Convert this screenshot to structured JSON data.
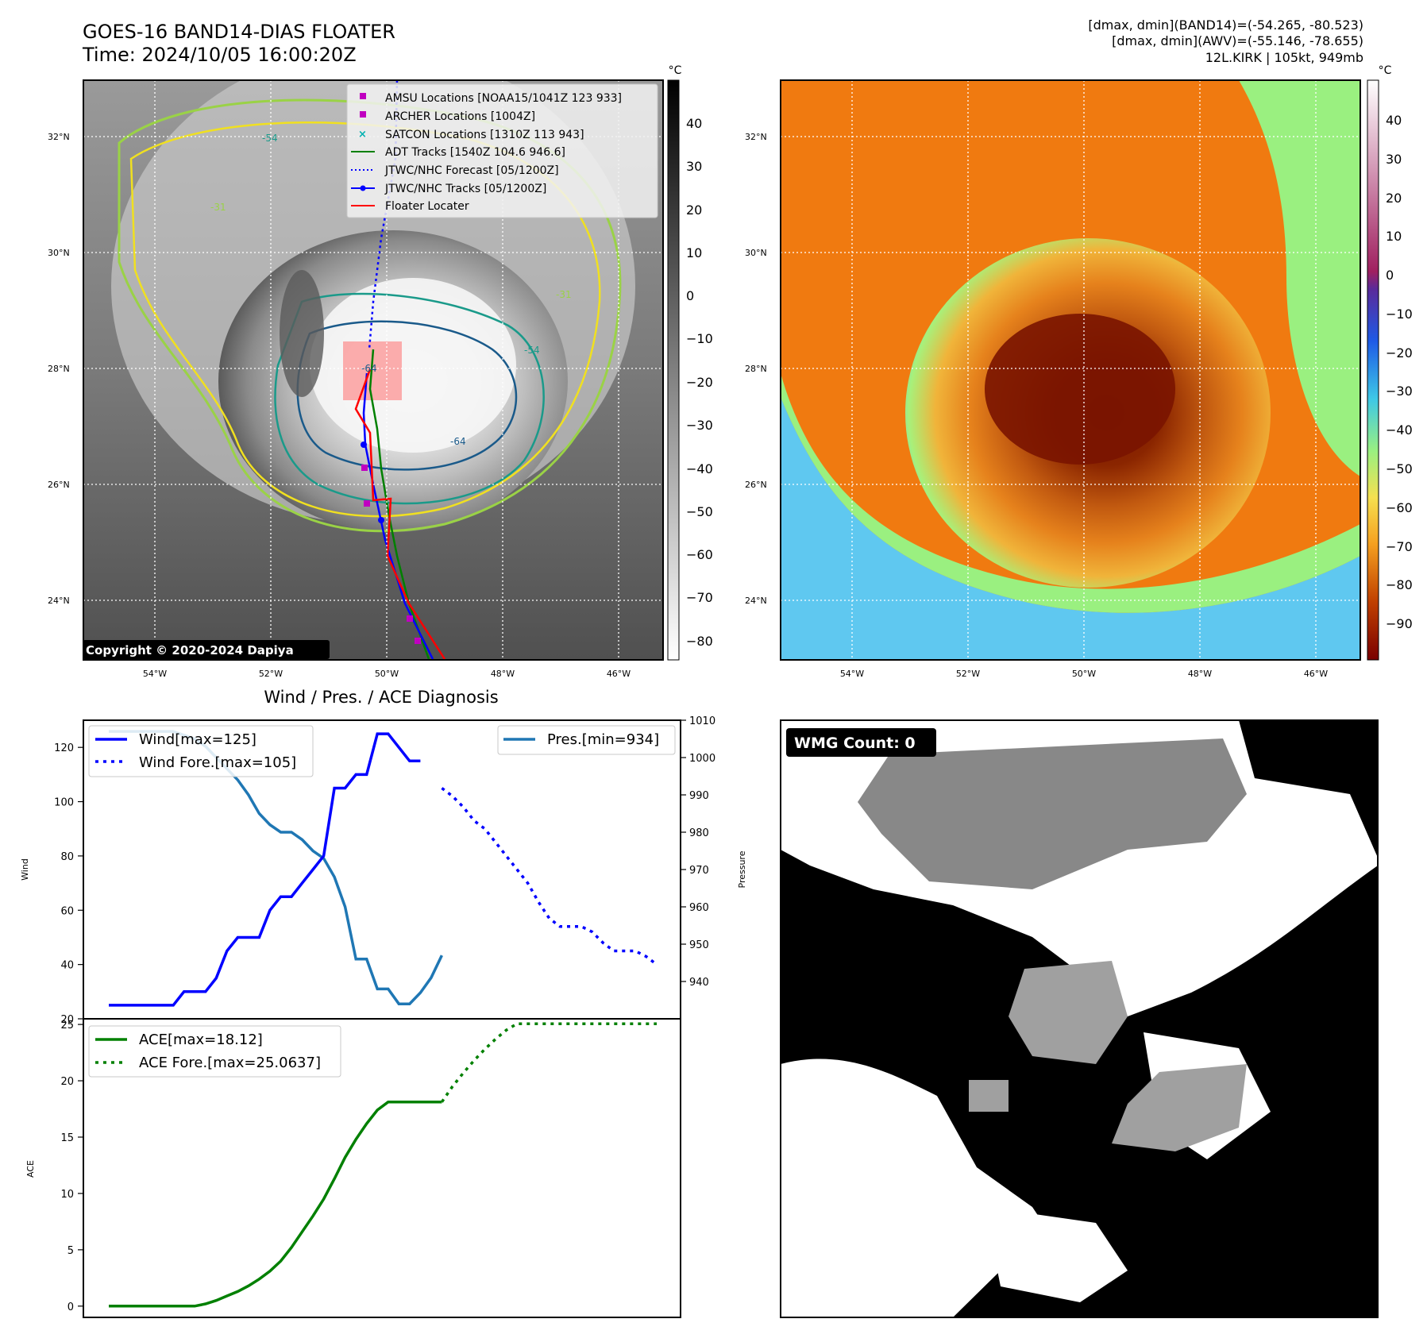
{
  "header": {
    "title": "GOES-16 BAND14-DIAS FLOATER",
    "time": "Time: 2024/10/05 16:00:20Z",
    "dmax_band14": "[dmax, dmin](BAND14)=(-54.265, -80.523)",
    "dmax_awv": "[dmax, dmin](AWV)=(-55.146, -78.655)",
    "storm": "12L.KIRK | 105kt, 949mb"
  },
  "map_axes": {
    "lat_labels": [
      "32°N",
      "30°N",
      "28°N",
      "26°N",
      "24°N"
    ],
    "lon_labels": [
      "54°W",
      "52°W",
      "50°W",
      "48°W",
      "46°W"
    ]
  },
  "ir_panel": {
    "legend": [
      {
        "label": "AMSU Locations [NOAA15/1041Z 123 933]",
        "color": "#c000c0",
        "marker": "square"
      },
      {
        "label": "ARCHER Locations [1004Z]",
        "color": "#c000c0",
        "marker": "square"
      },
      {
        "label": "SATCON Locations [1310Z 113 943]",
        "color": "#00b0b0",
        "marker": "x"
      },
      {
        "label": "ADT Tracks [1540Z 104.6 946.6]",
        "color": "#008000",
        "marker": "line"
      },
      {
        "label": "JTWC/NHC Forecast [05/1200Z]",
        "color": "#0000ff",
        "marker": "dotted"
      },
      {
        "label": "JTWC/NHC Tracks [05/1200Z]",
        "color": "#0000ff",
        "marker": "line-dot"
      },
      {
        "label": "Floater Locater",
        "color": "#ff0000",
        "marker": "line"
      }
    ],
    "colorbar_unit": "°C",
    "colorbar_ticks": [
      "40",
      "30",
      "20",
      "10",
      "0",
      "−10",
      "−20",
      "−30",
      "−40",
      "−50",
      "−60",
      "−70",
      "−80"
    ],
    "copyright": "Copyright © 2020-2024 Dapiya",
    "contour_labels": [
      "-54",
      "-31",
      "-31",
      "-54",
      "-64",
      "-64"
    ]
  },
  "awv_panel": {
    "colorbar_unit": "°C",
    "colorbar_ticks": [
      "40",
      "30",
      "20",
      "10",
      "0",
      "−10",
      "−20",
      "−30",
      "−40",
      "−50",
      "−60",
      "−70",
      "−80",
      "−90"
    ]
  },
  "wmg_panel": {
    "count_label": "WMG Count: 0"
  },
  "chart_data": [
    {
      "type": "line",
      "title": "Wind / Pres. / ACE Diagnosis",
      "ylabel": "Wind",
      "ylim": [
        20,
        130
      ],
      "yticks": [
        "120",
        "100",
        "80",
        "60",
        "40",
        "20"
      ],
      "series": [
        {
          "name": "Wind[max=125]",
          "color": "#0000ff",
          "style": "solid",
          "x": [
            0,
            1,
            2,
            3,
            4,
            5,
            6,
            7,
            8,
            9,
            10,
            11,
            12,
            13,
            14,
            15,
            16,
            17,
            18,
            19,
            20,
            21,
            22,
            23,
            24,
            25,
            26,
            27,
            28,
            29
          ],
          "values": [
            25,
            25,
            25,
            25,
            25,
            25,
            25,
            30,
            30,
            30,
            35,
            45,
            50,
            50,
            50,
            60,
            65,
            65,
            70,
            75,
            80,
            105,
            105,
            110,
            110,
            125,
            125,
            120,
            115,
            115
          ]
        },
        {
          "name": "Wind Fore.[max=105]",
          "color": "#0000ff",
          "style": "dotted",
          "x": [
            31,
            32,
            33,
            34,
            35,
            36,
            37,
            38,
            39,
            40,
            41,
            42,
            43,
            44,
            45,
            46,
            47,
            48,
            49,
            50,
            51
          ],
          "values": [
            105,
            102,
            98,
            93,
            90,
            85,
            80,
            75,
            70,
            63,
            57,
            54,
            54,
            54,
            52,
            48,
            45,
            45,
            45,
            43,
            40
          ]
        }
      ],
      "y2label": "Pressure",
      "y2lim": [
        930,
        1010
      ],
      "y2ticks": [
        "1010",
        "1000",
        "990",
        "980",
        "970",
        "960",
        "950",
        "940"
      ],
      "series_right": [
        {
          "name": "Pres.[min=934]",
          "color": "#1f77b4",
          "style": "solid",
          "x": [
            0,
            1,
            2,
            3,
            4,
            5,
            6,
            7,
            8,
            9,
            10,
            11,
            12,
            13,
            14,
            15,
            16,
            17,
            18,
            19,
            20,
            21,
            22,
            23,
            24,
            25,
            26,
            27,
            28,
            29,
            30,
            31
          ],
          "values": [
            1007,
            1007,
            1007,
            1007,
            1007,
            1007,
            1007,
            1006,
            1005,
            1003,
            1000,
            997,
            994,
            990,
            985,
            982,
            980,
            980,
            978,
            975,
            973,
            968,
            960,
            946,
            946,
            938,
            938,
            934,
            934,
            937,
            941,
            947
          ]
        }
      ]
    },
    {
      "type": "line",
      "ylabel": "ACE",
      "ylim": [
        -1,
        25.5
      ],
      "yticks": [
        "25",
        "20",
        "15",
        "10",
        "5",
        "0"
      ],
      "series": [
        {
          "name": "ACE[max=18.12]",
          "color": "#008000",
          "style": "solid",
          "x": [
            0,
            1,
            2,
            3,
            4,
            5,
            6,
            7,
            8,
            9,
            10,
            11,
            12,
            13,
            14,
            15,
            16,
            17,
            18,
            19,
            20,
            21,
            22,
            23,
            24,
            25,
            26,
            27,
            28,
            29,
            30,
            31
          ],
          "values": [
            0,
            0,
            0,
            0,
            0,
            0,
            0,
            0,
            0,
            0.2,
            0.5,
            0.9,
            1.3,
            1.8,
            2.4,
            3.1,
            4.0,
            5.2,
            6.6,
            8.0,
            9.5,
            11.3,
            13.2,
            14.8,
            16.2,
            17.4,
            18.12,
            18.12,
            18.12,
            18.12,
            18.12,
            18.12
          ]
        },
        {
          "name": "ACE Fore.[max=25.0637]",
          "color": "#008000",
          "style": "dotted",
          "x": [
            31,
            32,
            33,
            34,
            35,
            36,
            37,
            38,
            39,
            40,
            41,
            42,
            43,
            44,
            45,
            46,
            47,
            48,
            49,
            50,
            51
          ],
          "values": [
            18.12,
            19.5,
            20.7,
            21.8,
            22.8,
            23.7,
            24.5,
            25.06,
            25.06,
            25.06,
            25.06,
            25.06,
            25.06,
            25.06,
            25.06,
            25.06,
            25.06,
            25.06,
            25.06,
            25.06,
            25.06
          ]
        }
      ]
    }
  ]
}
